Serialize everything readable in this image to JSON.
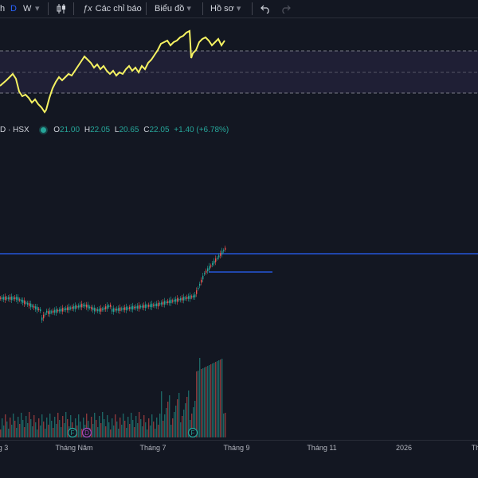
{
  "toolbar": {
    "interval_1": "h",
    "interval_d": "D",
    "interval_w": "W",
    "indicators_label": "Các chỉ báo",
    "charts_label": "Biểu đồ",
    "profile_label": "Hồ sơ"
  },
  "legend": {
    "symbol": "D · HSX",
    "o_label": "O",
    "o_value": "21.00",
    "h_label": "H",
    "h_value": "22.05",
    "l_label": "L",
    "l_value": "20.65",
    "c_label": "C",
    "c_value": "22.05",
    "change": "+1.40 (+6.78%)"
  },
  "colors": {
    "up": "#26a69a",
    "down": "#ef5350",
    "indicator_line": "#f5f262",
    "level_line": "#2962ff",
    "marker_f": "#26a69a",
    "marker_d": "#ab47bc"
  },
  "markers": [
    {
      "label": "F",
      "color": "#26a69a"
    },
    {
      "label": "D",
      "color": "#ab47bc"
    },
    {
      "label": "F",
      "color": "#26a69a"
    }
  ],
  "xaxis": {
    "ticks": [
      "g 3",
      "Tháng Năm",
      "Tháng 7",
      "Tháng 9",
      "Tháng 11",
      "2026",
      "Th"
    ]
  }
}
